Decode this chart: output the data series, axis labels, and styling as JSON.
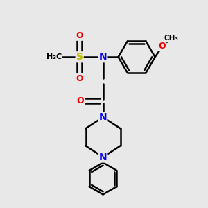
{
  "background_color": "#e8e8e8",
  "bond_color": "#000000",
  "nitrogen_color": "#0000ee",
  "oxygen_color": "#ee0000",
  "sulfur_color": "#bbbb00",
  "line_width": 1.8,
  "fig_width": 3.0,
  "fig_height": 3.0,
  "dpi": 100,
  "xlim": [
    0,
    10
  ],
  "ylim": [
    0,
    10
  ]
}
